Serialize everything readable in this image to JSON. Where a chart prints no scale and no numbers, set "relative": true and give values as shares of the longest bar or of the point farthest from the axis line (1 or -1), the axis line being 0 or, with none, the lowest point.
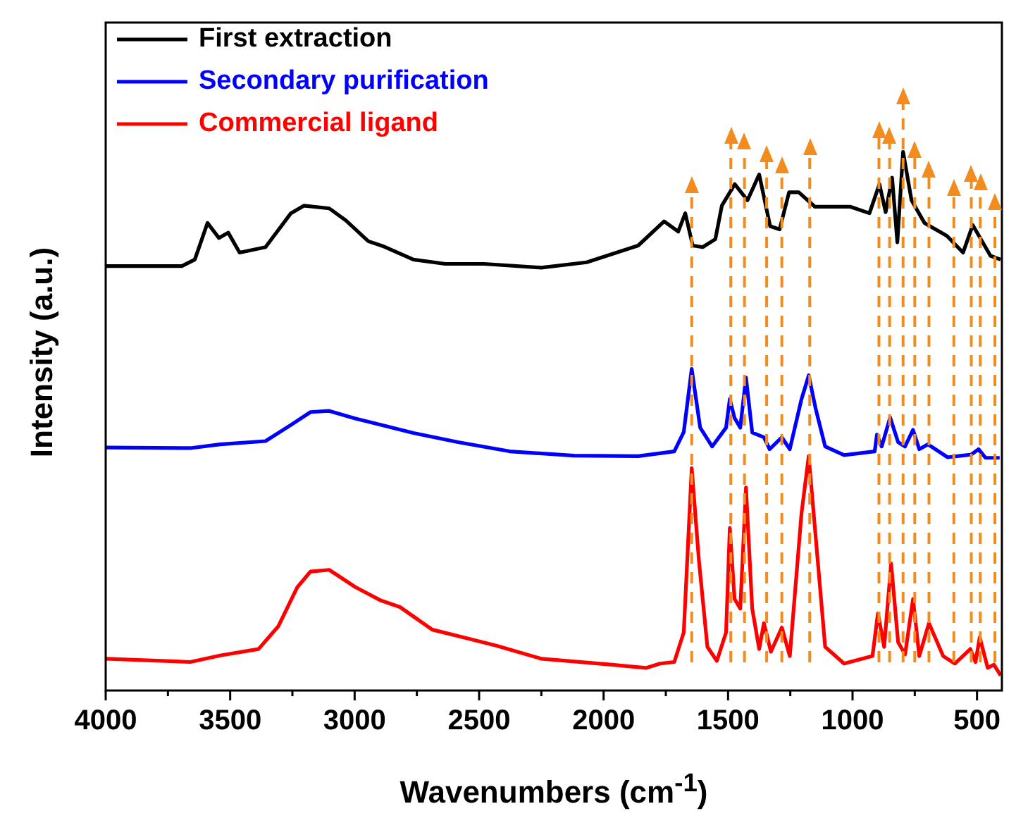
{
  "chart_data": {
    "type": "line",
    "xlabel": "Wavenumbers (cm$^{-1}$)",
    "ylabel": "Intensity (a.u.)",
    "relative": true,
    "xlim": [
      4000,
      400
    ],
    "xticks": [
      4000,
      {
        "value": 3750,
        "label": null
      },
      3500,
      {
        "value": 3250,
        "label": null
      },
      3000,
      {
        "value": 2750,
        "label": null
      },
      2500,
      {
        "value": 2250,
        "label": null
      },
      2000,
      {
        "value": 1750,
        "label": null
      },
      1500,
      {
        "value": 1250,
        "label": null
      },
      1000,
      {
        "value": 750,
        "label": null
      },
      500
    ],
    "legend": "top left",
    "grid": false,
    "line_style": "solid",
    "marker": "none",
    "series": [
      {
        "name": "First extraction",
        "color": "#000000",
        "x": [
          4000,
          3694,
          3642,
          3591,
          3545,
          3508,
          3462,
          3358,
          3256,
          3204,
          3102,
          3036,
          2945,
          2881,
          2764,
          2636,
          2480,
          2250,
          2068,
          1861,
          1757,
          1700,
          1672,
          1642,
          1602,
          1551,
          1525,
          1473,
          1422,
          1375,
          1331,
          1293,
          1255,
          1216,
          1151,
          1008,
          932,
          892,
          867,
          841,
          820,
          797,
          763,
          711,
          621,
          556,
          517,
          446,
          405
        ],
        "values": [
          0.788,
          0.788,
          0.8,
          0.868,
          0.84,
          0.85,
          0.813,
          0.823,
          0.886,
          0.9,
          0.895,
          0.873,
          0.834,
          0.824,
          0.8,
          0.792,
          0.792,
          0.785,
          0.795,
          0.826,
          0.871,
          0.852,
          0.886,
          0.826,
          0.823,
          0.838,
          0.9,
          0.94,
          0.91,
          0.958,
          0.862,
          0.856,
          0.925,
          0.925,
          0.898,
          0.898,
          0.886,
          0.94,
          0.888,
          0.952,
          0.832,
          1.0,
          0.91,
          0.868,
          0.844,
          0.813,
          0.864,
          0.807,
          0.8
        ]
      },
      {
        "name": "Secondary purification",
        "color": "#0000ff",
        "x": [
          4000,
          3660,
          3540,
          3358,
          3256,
          3177,
          3102,
          2997,
          2894,
          2764,
          2585,
          2377,
          2119,
          1861,
          1716,
          1678,
          1646,
          1612,
          1564,
          1508,
          1493,
          1474,
          1451,
          1428,
          1403,
          1356,
          1333,
          1284,
          1252,
          1205,
          1176,
          1148,
          1110,
          1034,
          911,
          902,
          883,
          849,
          817,
          789,
          757,
          732,
          697,
          618,
          523,
          494,
          466,
          409
        ],
        "values": [
          0.451,
          0.45,
          0.457,
          0.463,
          0.493,
          0.517,
          0.519,
          0.505,
          0.493,
          0.478,
          0.461,
          0.444,
          0.436,
          0.435,
          0.444,
          0.48,
          0.597,
          0.488,
          0.453,
          0.488,
          0.541,
          0.506,
          0.488,
          0.581,
          0.479,
          0.47,
          0.448,
          0.47,
          0.448,
          0.541,
          0.585,
          0.523,
          0.453,
          0.437,
          0.444,
          0.475,
          0.453,
          0.507,
          0.461,
          0.453,
          0.484,
          0.448,
          0.457,
          0.433,
          0.438,
          0.448,
          0.432,
          0.432
        ]
      },
      {
        "name": "Commercial ligand",
        "color": "#ff0000",
        "x": [
          4000,
          3660,
          3540,
          3386,
          3307,
          3230,
          3177,
          3102,
          2997,
          2894,
          2818,
          2688,
          2558,
          2429,
          2250,
          1990,
          1830,
          1773,
          1716,
          1678,
          1646,
          1617,
          1583,
          1545,
          1508,
          1493,
          1474,
          1451,
          1428,
          1403,
          1375,
          1356,
          1328,
          1284,
          1252,
          1205,
          1176,
          1148,
          1110,
          1034,
          920,
          898,
          873,
          845,
          817,
          789,
          757,
          732,
          693,
          636,
          589,
          527,
          506,
          489,
          457,
          432,
          405
        ],
        "values": [
          0.059,
          0.053,
          0.065,
          0.077,
          0.119,
          0.192,
          0.221,
          0.224,
          0.192,
          0.167,
          0.155,
          0.113,
          0.098,
          0.083,
          0.059,
          0.049,
          0.042,
          0.05,
          0.053,
          0.108,
          0.413,
          0.241,
          0.081,
          0.055,
          0.108,
          0.302,
          0.17,
          0.152,
          0.377,
          0.152,
          0.077,
          0.125,
          0.072,
          0.117,
          0.064,
          0.329,
          0.435,
          0.285,
          0.081,
          0.05,
          0.064,
          0.143,
          0.081,
          0.236,
          0.09,
          0.067,
          0.17,
          0.064,
          0.125,
          0.064,
          0.05,
          0.077,
          0.053,
          0.099,
          0.042,
          0.048,
          0.028
        ]
      }
    ],
    "ref_lines": [
      {
        "axis": "x",
        "value": 1646,
        "color": "#f28c1e",
        "line_style": "dashed"
      },
      {
        "axis": "x",
        "value": 1489,
        "color": "#f28c1e",
        "line_style": "dashed"
      },
      {
        "axis": "x",
        "value": 1434,
        "color": "#f28c1e",
        "line_style": "dashed"
      },
      {
        "axis": "x",
        "value": 1345,
        "color": "#f28c1e",
        "line_style": "dashed"
      },
      {
        "axis": "x",
        "value": 1284,
        "color": "#f28c1e",
        "line_style": "dashed"
      },
      {
        "axis": "x",
        "value": 1172,
        "color": "#f28c1e",
        "line_style": "dashed"
      },
      {
        "axis": "x",
        "value": 894,
        "color": "#f28c1e",
        "line_style": "dashed"
      },
      {
        "axis": "x",
        "value": 851,
        "color": "#f28c1e",
        "line_style": "dashed"
      },
      {
        "axis": "x",
        "value": 797,
        "color": "#f28c1e",
        "line_style": "dashed"
      },
      {
        "axis": "x",
        "value": 750,
        "color": "#f28c1e",
        "line_style": "dashed"
      },
      {
        "axis": "x",
        "value": 693,
        "color": "#f28c1e",
        "line_style": "dashed"
      },
      {
        "axis": "x",
        "value": 593,
        "color": "#f28c1e",
        "line_style": "dashed"
      },
      {
        "axis": "x",
        "value": 523,
        "color": "#f28c1e",
        "line_style": "dashed"
      },
      {
        "axis": "x",
        "value": 487,
        "color": "#f28c1e",
        "line_style": "dashed"
      },
      {
        "axis": "x",
        "value": 428,
        "color": "#f28c1e",
        "line_style": "dashed"
      }
    ]
  }
}
